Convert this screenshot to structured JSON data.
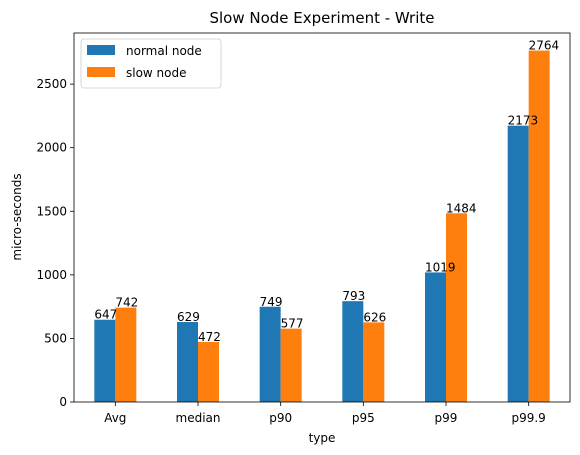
{
  "chart_data": {
    "type": "bar",
    "title": "Slow Node Experiment - Write",
    "xlabel": "type",
    "ylabel": "micro-seconds",
    "categories": [
      "Avg",
      "median",
      "p90",
      "p95",
      "p99",
      "p99.9"
    ],
    "series": [
      {
        "name": "normal node",
        "color": "#1f77b4",
        "values": [
          647,
          629,
          749,
          793,
          1019,
          2173
        ]
      },
      {
        "name": "slow node",
        "color": "#ff7f0e",
        "values": [
          742,
          472,
          577,
          626,
          1484,
          2764
        ]
      }
    ],
    "ylim": [
      0,
      2902
    ],
    "yticks": [
      0,
      500,
      1000,
      1500,
      2000,
      2500
    ],
    "legend_position": "top-left",
    "grid": false
  }
}
